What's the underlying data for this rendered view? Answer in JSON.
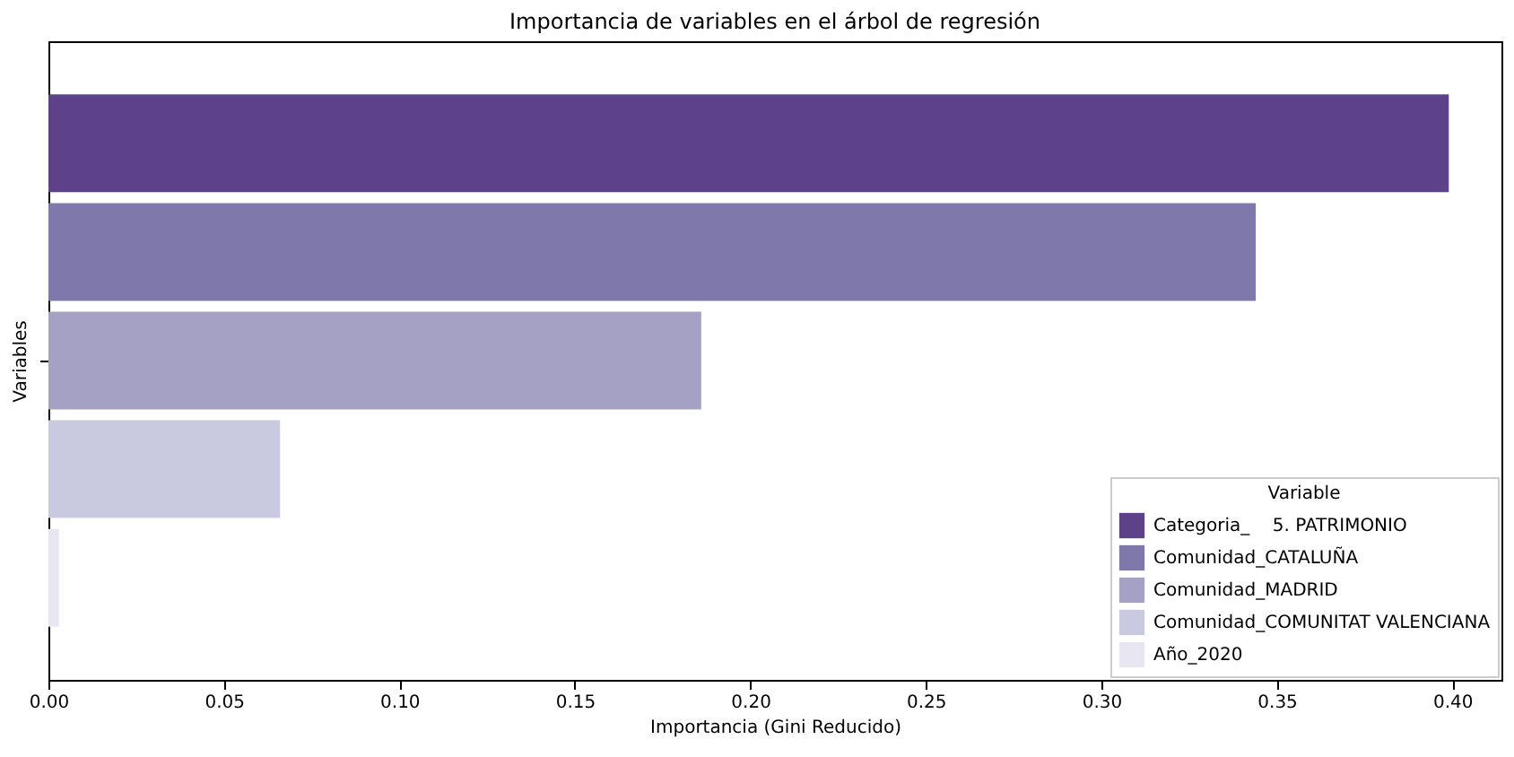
{
  "chart_data": {
    "type": "bar",
    "orientation": "horizontal",
    "title": "Importancia de variables en el árbol de regresión",
    "xlabel": "Importancia (Gini Reducido)",
    "ylabel": "Variables",
    "legend_title": "Variable",
    "legend": "bottom right",
    "grid": false,
    "categories": [
      null
    ],
    "series": [
      {
        "name": "Categoria_    5. PATRIMONIO",
        "color": "#5e4289",
        "values": [
          0.399
        ]
      },
      {
        "name": "Comunidad_CATALUÑA",
        "color": "#7f78aa",
        "values": [
          0.344
        ]
      },
      {
        "name": "Comunidad_MADRID",
        "color": "#a5a1c5",
        "values": [
          0.186
        ]
      },
      {
        "name": "Comunidad_COMUNITAT VALENCIANA",
        "color": "#c9c9df",
        "values": [
          0.066
        ]
      },
      {
        "name": "Año_2020",
        "color": "#e8e6f0",
        "values": [
          0.003
        ]
      }
    ],
    "xlim": [
      0,
      0.414
    ],
    "xticks": [
      {
        "value": 0,
        "label": "0.00"
      },
      {
        "value": 0.05,
        "label": "0.05"
      },
      {
        "value": 0.1,
        "label": "0.10"
      },
      {
        "value": 0.15,
        "label": "0.15"
      },
      {
        "value": 0.2,
        "label": "0.20"
      },
      {
        "value": 0.25,
        "label": "0.25"
      },
      {
        "value": 0.3,
        "label": "0.30"
      },
      {
        "value": 0.35,
        "label": "0.35"
      },
      {
        "value": 0.4,
        "label": "0.40"
      }
    ]
  }
}
